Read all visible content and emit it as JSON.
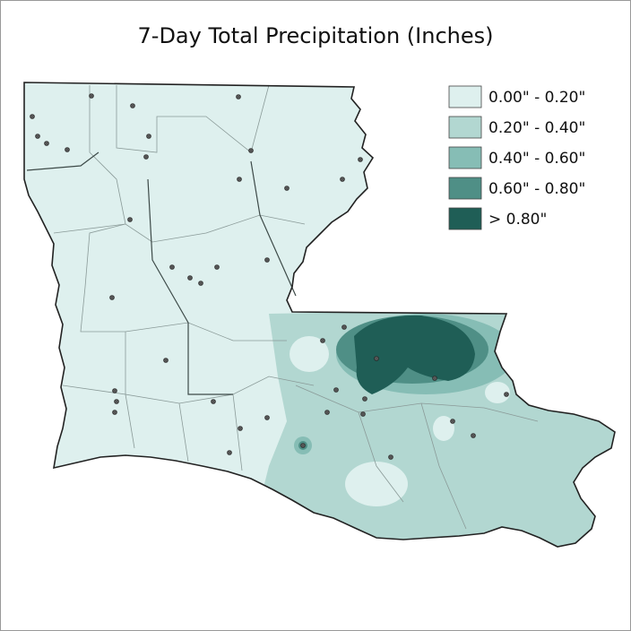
{
  "title": "7-Day Total Precipitation (Inches)",
  "legend": {
    "items": [
      {
        "label": "0.00\" - 0.20\"",
        "color": "#def0ee"
      },
      {
        "label": "0.20\" - 0.40\"",
        "color": "#b2d7d1"
      },
      {
        "label": "0.40\" - 0.60\"",
        "color": "#86bdb5"
      },
      {
        "label": "0.60\" - 0.80\"",
        "color": "#4f8f86"
      },
      {
        "label": "> 0.80\"",
        "color": "#1f5e56"
      }
    ]
  }
}
